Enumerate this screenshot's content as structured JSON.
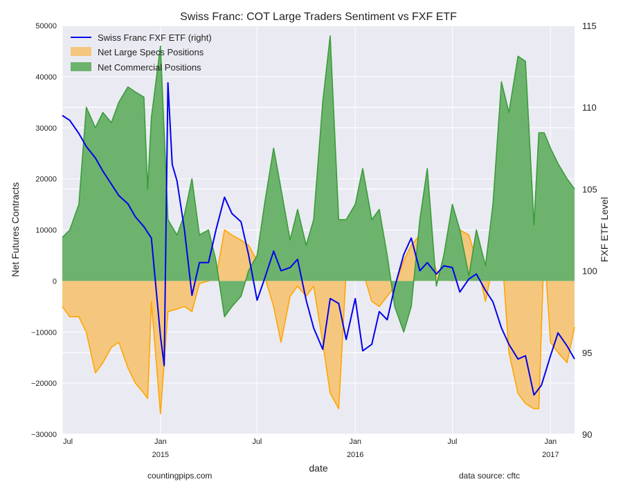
{
  "chart_data": {
    "type": "area",
    "title": "Swiss Franc: COT Large Traders Sentiment vs FXF ETF",
    "xlabel": "date",
    "ylabel": "Net Futures Contracts",
    "y2label": "FXF ETF Level",
    "ylim": [
      -30000,
      50000
    ],
    "y2lim": [
      90,
      115
    ],
    "yticks": [
      "−30000",
      "−20000",
      "−10000",
      "0",
      "10000",
      "20000",
      "30000",
      "40000",
      "50000"
    ],
    "y2ticks": [
      "90",
      "95",
      "100",
      "105",
      "110",
      "115"
    ],
    "xlim": [
      "2014-07-01",
      "2017-02-15"
    ],
    "xticks": [
      {
        "date": "2014-07-01",
        "label": "Jul",
        "year": ""
      },
      {
        "date": "2015-01-01",
        "label": "Jan",
        "year": "2015"
      },
      {
        "date": "2015-07-01",
        "label": "Jul",
        "year": ""
      },
      {
        "date": "2016-01-01",
        "label": "Jan",
        "year": "2016"
      },
      {
        "date": "2016-07-01",
        "label": "Jul",
        "year": ""
      },
      {
        "date": "2017-01-01",
        "label": "Jan",
        "year": "2017"
      }
    ],
    "grid": true,
    "legend": "top-left",
    "colors": {
      "fxf": "#0000ee",
      "specs_line": "#ffa500",
      "specs_fill": "#f5c77e",
      "comm_line": "#3a9c3a",
      "comm_fill": "#6db36d",
      "background": "#eaeaf2"
    },
    "series": [
      {
        "name": "Swiss Franc FXF ETF (right)",
        "kind": "line",
        "axis": "right",
        "x": [
          "2014-07-01",
          "2014-07-15",
          "2014-08-01",
          "2014-08-15",
          "2014-09-01",
          "2014-09-15",
          "2014-10-01",
          "2014-10-15",
          "2014-11-01",
          "2014-11-15",
          "2014-12-01",
          "2014-12-15",
          "2015-01-01",
          "2015-01-08",
          "2015-01-15",
          "2015-01-23",
          "2015-02-01",
          "2015-02-15",
          "2015-03-01",
          "2015-03-15",
          "2015-04-01",
          "2015-04-15",
          "2015-05-01",
          "2015-05-15",
          "2015-06-01",
          "2015-06-15",
          "2015-07-01",
          "2015-07-15",
          "2015-08-01",
          "2015-08-15",
          "2015-09-01",
          "2015-09-15",
          "2015-10-01",
          "2015-10-15",
          "2015-11-01",
          "2015-11-15",
          "2015-12-01",
          "2015-12-15",
          "2016-01-01",
          "2016-01-15",
          "2016-02-01",
          "2016-02-15",
          "2016-03-01",
          "2016-03-15",
          "2016-04-01",
          "2016-04-15",
          "2016-05-01",
          "2016-05-15",
          "2016-06-01",
          "2016-06-15",
          "2016-07-01",
          "2016-07-15",
          "2016-08-01",
          "2016-08-15",
          "2016-09-01",
          "2016-09-15",
          "2016-10-01",
          "2016-10-15",
          "2016-11-01",
          "2016-11-15",
          "2016-12-01",
          "2016-12-15",
          "2017-01-01",
          "2017-01-15",
          "2017-02-01",
          "2017-02-15"
        ],
        "values": [
          109.5,
          109.2,
          108.4,
          107.6,
          106.9,
          106.1,
          105.3,
          104.6,
          104.1,
          103.3,
          102.7,
          102.0,
          96.0,
          94.2,
          111.5,
          106.5,
          105.5,
          102.5,
          98.5,
          100.5,
          100.5,
          102.5,
          104.5,
          103.5,
          103.0,
          101.0,
          98.2,
          99.5,
          101.2,
          100.0,
          100.2,
          100.7,
          98.2,
          96.5,
          95.2,
          98.3,
          98.0,
          95.8,
          98.3,
          95.1,
          95.5,
          97.5,
          97.0,
          99.0,
          101.0,
          102.0,
          100.0,
          100.5,
          99.8,
          100.3,
          100.2,
          98.7,
          99.5,
          99.8,
          98.8,
          98.1,
          96.5,
          95.5,
          94.6,
          94.8,
          92.4,
          93.0,
          94.8,
          96.2,
          95.4,
          94.6
        ]
      },
      {
        "name": "Net Large Specs Positions",
        "kind": "area",
        "axis": "left",
        "x": [
          "2014-07-01",
          "2014-07-15",
          "2014-08-01",
          "2014-08-15",
          "2014-09-01",
          "2014-09-15",
          "2014-10-01",
          "2014-10-15",
          "2014-11-01",
          "2014-11-15",
          "2014-12-01",
          "2014-12-08",
          "2014-12-15",
          "2015-01-01",
          "2015-01-15",
          "2015-02-01",
          "2015-02-15",
          "2015-03-01",
          "2015-03-15",
          "2015-04-01",
          "2015-04-15",
          "2015-05-01",
          "2015-05-15",
          "2015-06-01",
          "2015-06-15",
          "2015-07-01",
          "2015-07-15",
          "2015-08-01",
          "2015-08-15",
          "2015-09-01",
          "2015-09-15",
          "2015-10-01",
          "2015-10-15",
          "2015-11-01",
          "2015-11-15",
          "2015-12-01",
          "2015-12-15",
          "2016-01-01",
          "2016-01-15",
          "2016-02-01",
          "2016-02-15",
          "2016-03-01",
          "2016-03-15",
          "2016-04-01",
          "2016-04-15",
          "2016-05-01",
          "2016-05-15",
          "2016-06-01",
          "2016-06-15",
          "2016-07-01",
          "2016-07-15",
          "2016-08-01",
          "2016-08-15",
          "2016-09-01",
          "2016-09-15",
          "2016-10-01",
          "2016-10-15",
          "2016-11-01",
          "2016-11-15",
          "2016-12-01",
          "2016-12-10",
          "2016-12-20",
          "2017-01-01",
          "2017-01-15",
          "2017-02-01",
          "2017-02-15"
        ],
        "values": [
          -5000,
          -7000,
          -7000,
          -10000,
          -18000,
          -16000,
          -13000,
          -12000,
          -17000,
          -20000,
          -22000,
          -23000,
          -4000,
          -26000,
          -6000,
          -5500,
          -5000,
          -6000,
          -500,
          0,
          500,
          10000,
          9000,
          8000,
          7000,
          4000,
          1000,
          -5000,
          -12000,
          -3000,
          -1000,
          -3000,
          -1000,
          -12000,
          -22000,
          -25000,
          2000,
          3000,
          2000,
          -4000,
          -5000,
          -3000,
          -1000,
          4000,
          7000,
          9000,
          8000,
          2000,
          1000,
          0,
          10000,
          9000,
          4000,
          -4000,
          3000,
          7000,
          -14000,
          -22000,
          -24000,
          -25000,
          -25000,
          7000,
          -12000,
          -14000,
          -16000,
          -9000
        ]
      },
      {
        "name": "Net Commercial Positions",
        "kind": "area",
        "axis": "left",
        "x": [
          "2014-07-01",
          "2014-07-15",
          "2014-08-01",
          "2014-08-15",
          "2014-09-01",
          "2014-09-15",
          "2014-10-01",
          "2014-10-15",
          "2014-11-01",
          "2014-11-15",
          "2014-12-01",
          "2014-12-08",
          "2014-12-15",
          "2015-01-01",
          "2015-01-15",
          "2015-02-01",
          "2015-02-15",
          "2015-03-01",
          "2015-03-15",
          "2015-04-01",
          "2015-04-15",
          "2015-05-01",
          "2015-05-15",
          "2015-06-01",
          "2015-06-15",
          "2015-07-01",
          "2015-07-15",
          "2015-08-01",
          "2015-08-15",
          "2015-09-01",
          "2015-09-15",
          "2015-10-01",
          "2015-10-15",
          "2015-11-01",
          "2015-11-15",
          "2015-12-01",
          "2015-12-15",
          "2016-01-01",
          "2016-01-15",
          "2016-02-01",
          "2016-02-15",
          "2016-03-01",
          "2016-03-15",
          "2016-04-01",
          "2016-04-15",
          "2016-05-01",
          "2016-05-15",
          "2016-06-01",
          "2016-06-15",
          "2016-07-01",
          "2016-07-15",
          "2016-08-01",
          "2016-08-15",
          "2016-09-01",
          "2016-09-15",
          "2016-10-01",
          "2016-10-15",
          "2016-11-01",
          "2016-11-15",
          "2016-12-01",
          "2016-12-10",
          "2016-12-20",
          "2017-01-01",
          "2017-01-15",
          "2017-02-01",
          "2017-02-15"
        ],
        "values": [
          8500,
          10000,
          15000,
          34000,
          30000,
          33000,
          31000,
          35000,
          38000,
          37000,
          36000,
          18000,
          32000,
          46000,
          12000,
          9000,
          13000,
          20000,
          9000,
          10000,
          4000,
          -7000,
          -5000,
          -3000,
          2000,
          5000,
          15000,
          26000,
          18000,
          8000,
          14000,
          7000,
          12000,
          35000,
          48000,
          12000,
          12000,
          15000,
          22000,
          12000,
          14000,
          5000,
          -5000,
          -10000,
          -5000,
          12000,
          22000,
          -1000,
          5000,
          15000,
          10000,
          1000,
          10000,
          3000,
          15000,
          39000,
          33000,
          44000,
          43000,
          11000,
          29000,
          29000,
          26000,
          23000,
          20000,
          18000
        ]
      }
    ]
  },
  "footer": {
    "left": "countingpips.com",
    "right": "data source: cftc"
  }
}
